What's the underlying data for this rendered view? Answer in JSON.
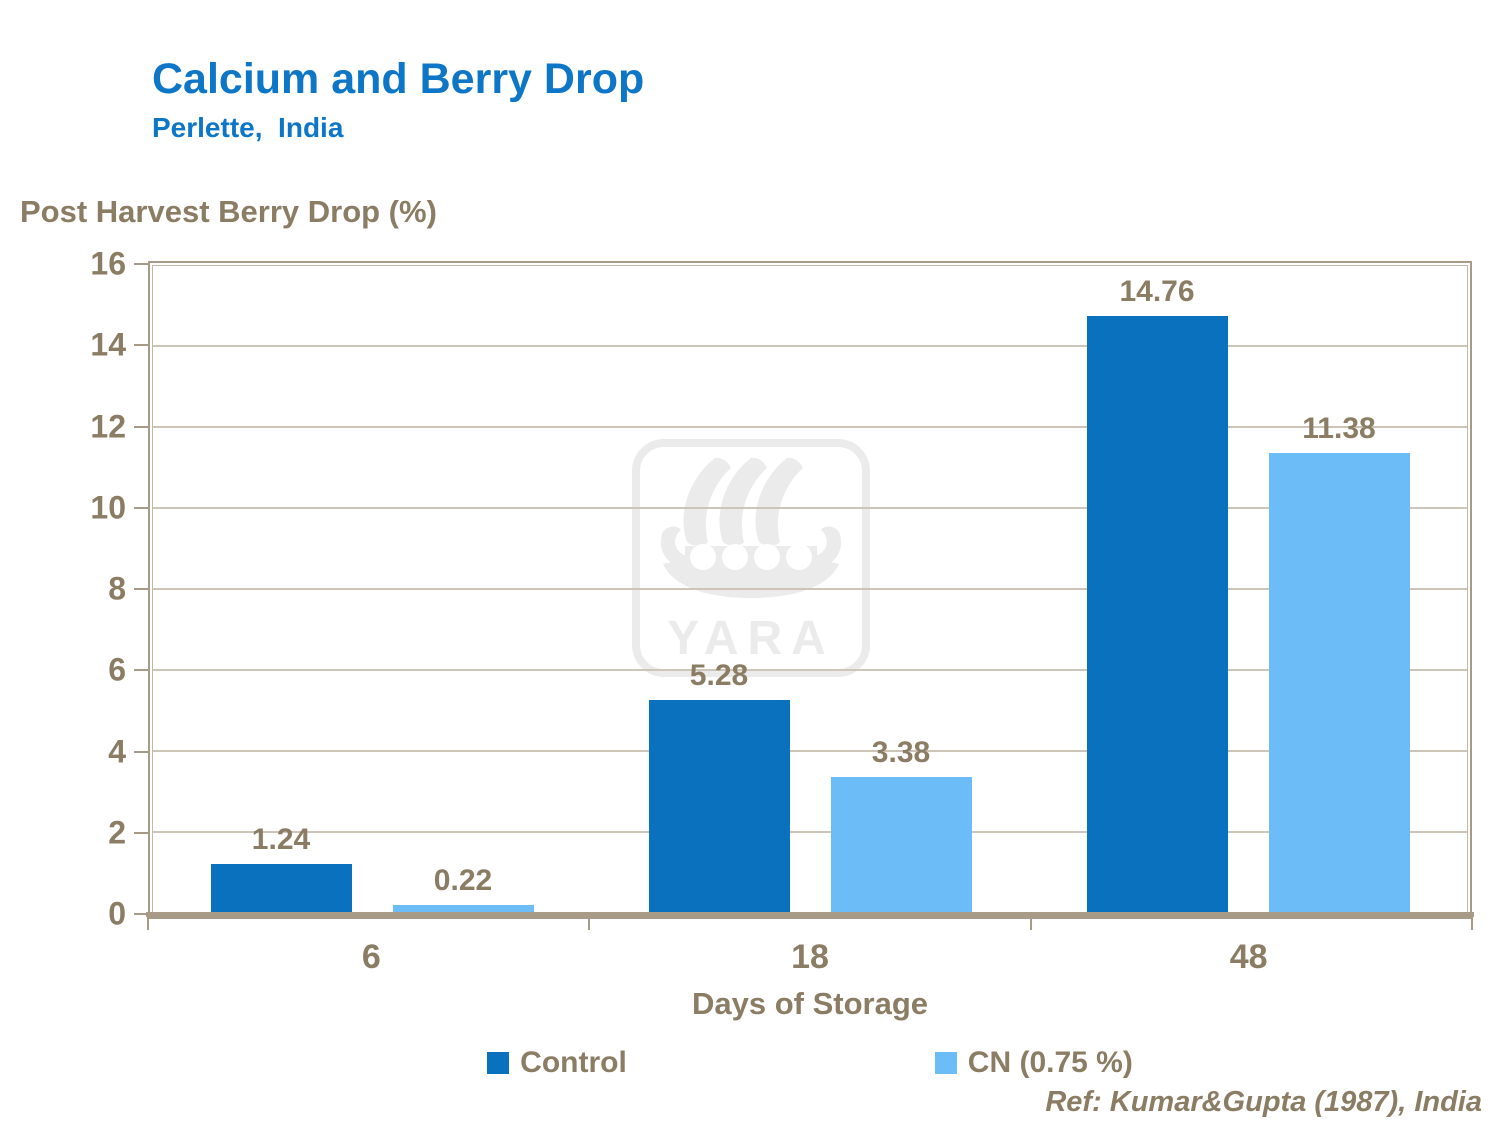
{
  "header": {
    "title": "Calcium and Berry Drop",
    "subtitle": "Perlette,  India"
  },
  "chart_data": {
    "type": "bar",
    "title": "Post Harvest Berry Drop (%)",
    "xlabel": "Days of Storage",
    "ylabel": "Post Harvest Berry Drop (%)",
    "categories": [
      "6",
      "18",
      "48"
    ],
    "series": [
      {
        "name": "Control",
        "color": "#0971be",
        "values": [
          1.24,
          5.28,
          14.76
        ]
      },
      {
        "name": "CN (0.75 %)",
        "color": "#6cbdf7",
        "values": [
          0.22,
          3.38,
          11.38
        ]
      }
    ],
    "ylim": [
      0,
      16
    ],
    "yticks": [
      0,
      2,
      4,
      6,
      8,
      10,
      12,
      14,
      16
    ],
    "grid": true,
    "legend_position": "bottom",
    "value_labels": true,
    "value_label_decimals": 2
  },
  "watermark": {
    "label": "YARA"
  },
  "footer": {
    "reference": "Ref: Kumar&Gupta (1987), India"
  },
  "colors": {
    "title_blue": "#0d76c6",
    "text_brown": "#8b7c64",
    "axis_taupe": "#a79b87",
    "gridline": "#cdc5b7",
    "watermark_gray": "#ebebeb",
    "series_control": "#0971be",
    "series_cn": "#6cbdf7"
  }
}
